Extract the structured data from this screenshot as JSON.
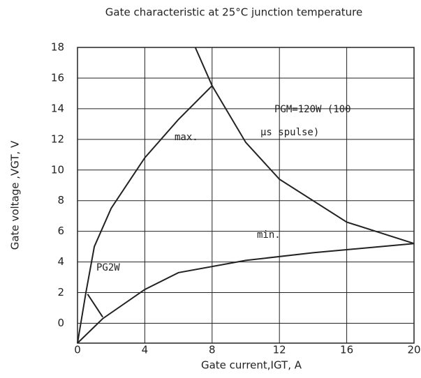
{
  "chart_data": {
    "type": "line",
    "title": "Gate characteristic at 25°C junction temperature",
    "xlabel": "Gate current,IGT, A",
    "ylabel": "Gate voltage ,VGT, V",
    "xlim": [
      0,
      20
    ],
    "xticks": [
      0,
      4,
      8,
      12,
      16,
      20
    ],
    "ylim": [
      -1.3,
      18
    ],
    "yticks": [
      0,
      2,
      4,
      6,
      8,
      10,
      12,
      14,
      16,
      18
    ],
    "grid": true,
    "annotations": [
      "max.",
      "min.",
      "PGM=120W (100",
      "μs spulse)",
      "PG2W"
    ],
    "series": [
      {
        "name": "max.",
        "color": "#222222",
        "x": [
          0,
          0.5,
          1,
          2,
          4,
          6,
          8
        ],
        "values": [
          -1.3,
          2,
          5,
          7.5,
          10.8,
          13.3,
          15.5
        ]
      },
      {
        "name": "min.",
        "color": "#222222",
        "x": [
          0,
          1.5,
          4,
          6,
          10,
          14,
          20
        ],
        "values": [
          -1.3,
          0.3,
          2.2,
          3.3,
          4.1,
          4.6,
          5.2
        ]
      },
      {
        "name": "PGM=120W",
        "color": "#222222",
        "x": [
          7,
          8,
          10,
          12,
          16,
          20
        ],
        "values": [
          18,
          15.5,
          11.8,
          9.4,
          6.6,
          5.2
        ]
      },
      {
        "name": "PG2W",
        "color": "#222222",
        "x": [
          0.6,
          1.5
        ],
        "values": [
          1.9,
          0.4
        ]
      }
    ]
  }
}
